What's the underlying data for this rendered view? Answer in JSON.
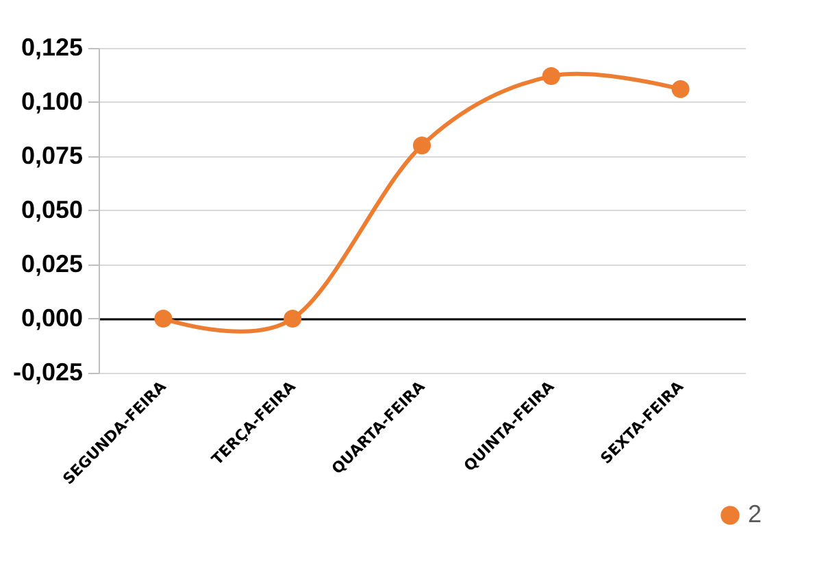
{
  "chart_data": {
    "type": "line",
    "categories": [
      "SEGUNDA-FEIRA",
      "TERÇA-FEIRA",
      "QUARTA-FEIRA",
      "QUINTA-FEIRA",
      "SEXTA-FEIRA"
    ],
    "series": [
      {
        "name": "2",
        "color": "#ed7d31",
        "values": [
          0,
          0,
          0.08,
          0.112,
          0.106
        ]
      }
    ],
    "ylim": [
      -0.025,
      0.125
    ],
    "yticks": [
      {
        "value": -0.025,
        "label": "-0,025"
      },
      {
        "value": 0,
        "label": "0,000"
      },
      {
        "value": 0.025,
        "label": "0,025"
      },
      {
        "value": 0.05,
        "label": "0,050"
      },
      {
        "value": 0.075,
        "label": "0,075"
      },
      {
        "value": 0.1,
        "label": "0,100"
      },
      {
        "value": 0.125,
        "label": "0,125"
      }
    ],
    "grid": "y",
    "legend": "bottom right",
    "marker": "circle",
    "line_style": "solid"
  }
}
